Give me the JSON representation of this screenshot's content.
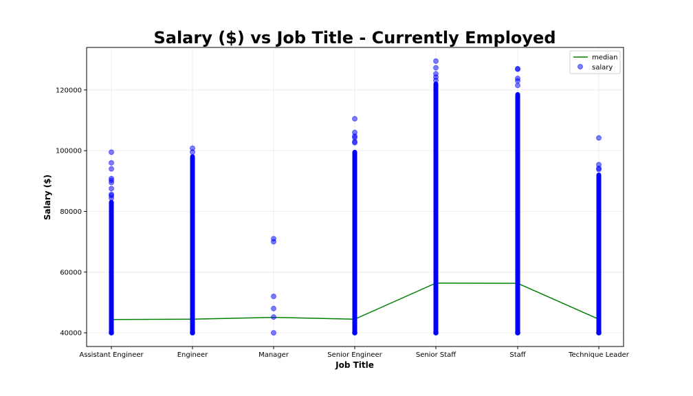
{
  "chart_data": {
    "type": "scatter",
    "title": "Salary ($) vs Job Title - Currently Employed",
    "xlabel": "Job Title",
    "ylabel": "Salary ($)",
    "categories": [
      "Assistant Engineer",
      "Engineer",
      "Manager",
      "Senior Engineer",
      "Senior Staff",
      "Staff",
      "Technique Leader"
    ],
    "yticks": [
      40000,
      60000,
      80000,
      100000,
      120000
    ],
    "ylim": [
      35500,
      134000
    ],
    "grid": true,
    "legend_position": "top-right",
    "legend": [
      "median",
      "salary"
    ],
    "colors": {
      "median": "#008000",
      "salary": "#0000ff"
    },
    "series": [
      {
        "name": "median",
        "kind": "line",
        "values": [
          44400,
          44500,
          45100,
          44500,
          56400,
          56300,
          44500
        ]
      },
      {
        "name": "salary",
        "kind": "scatter",
        "points": [
          {
            "category": "Assistant Engineer",
            "range": [
              40000,
              83000
            ],
            "outliers": [
              99500,
              96000,
              94000,
              90800,
              90200,
              89500,
              87500,
              85600,
              85200,
              84400
            ]
          },
          {
            "category": "Engineer",
            "range": [
              40000,
              98000
            ],
            "outliers": [
              100800,
              99500
            ]
          },
          {
            "category": "Manager",
            "range": [
              40000,
              40000
            ],
            "outliers": [
              71000,
              70000,
              52000,
              48000,
              45200
            ]
          },
          {
            "category": "Senior Engineer",
            "range": [
              40000,
              99500
            ],
            "outliers": [
              110500,
              106000,
              104800,
              104300,
              103000,
              102600
            ]
          },
          {
            "category": "Senior Staff",
            "range": [
              40000,
              122000
            ],
            "outliers": [
              129500,
              127300,
              125300,
              124200,
              123200
            ]
          },
          {
            "category": "Staff",
            "range": [
              40000,
              118500
            ],
            "outliers": [
              127000,
              126800,
              123800,
              123000,
              121500
            ]
          },
          {
            "category": "Technique Leader",
            "range": [
              40000,
              92000
            ],
            "outliers": [
              104200,
              95400,
              94200,
              93800
            ]
          }
        ]
      }
    ]
  }
}
